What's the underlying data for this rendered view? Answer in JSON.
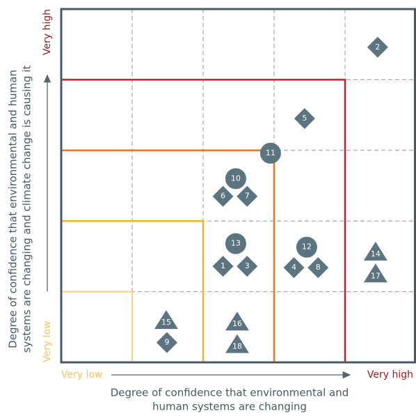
{
  "chart_data": {
    "type": "scatter",
    "x_label": [
      "Degree of confidence that environmental and",
      "human systems are changing"
    ],
    "y_label": [
      "Degree of confidence that environmental and human",
      "systems are changing and climate change is causing it"
    ],
    "xlim": [
      0,
      5
    ],
    "ylim": [
      0,
      5
    ],
    "xticks": [
      {
        "value": 0,
        "label": "Very low"
      },
      {
        "value": 5,
        "label": "Very high"
      }
    ],
    "yticks": [
      {
        "value": 0,
        "label": "Very low"
      },
      {
        "value": 5,
        "label": "Very high"
      }
    ],
    "tick_colors": [
      "#f6c460",
      "#9b1b1b"
    ],
    "grid_values": [
      1,
      2,
      3,
      4
    ],
    "zones": [
      {
        "extent": 1,
        "color": "#f9d690"
      },
      {
        "extent": 2,
        "color": "#f2b62a"
      },
      {
        "extent": 3,
        "color": "#e8781e"
      },
      {
        "extent": 4,
        "color": "#c0262b"
      }
    ],
    "marker_color": "#5b7480",
    "points": [
      {
        "label": "2",
        "shape": "diamond",
        "x": 4.46,
        "y": 4.46
      },
      {
        "label": "5",
        "shape": "diamond",
        "x": 3.43,
        "y": 3.45
      },
      {
        "label": "11",
        "shape": "circle",
        "x": 2.95,
        "y": 2.96
      },
      {
        "label": "10",
        "shape": "circle",
        "x": 2.46,
        "y": 2.6
      },
      {
        "label": "6",
        "shape": "diamond",
        "x": 2.28,
        "y": 2.35
      },
      {
        "label": "7",
        "shape": "diamond",
        "x": 2.62,
        "y": 2.35
      },
      {
        "label": "13",
        "shape": "circle",
        "x": 2.46,
        "y": 1.68
      },
      {
        "label": "1",
        "shape": "diamond",
        "x": 2.28,
        "y": 1.36
      },
      {
        "label": "3",
        "shape": "diamond",
        "x": 2.62,
        "y": 1.36
      },
      {
        "label": "12",
        "shape": "circle",
        "x": 3.46,
        "y": 1.63
      },
      {
        "label": "4",
        "shape": "diamond",
        "x": 3.28,
        "y": 1.34
      },
      {
        "label": "8",
        "shape": "diamond",
        "x": 3.62,
        "y": 1.34
      },
      {
        "label": "14",
        "shape": "triangle",
        "x": 4.43,
        "y": 1.56
      },
      {
        "label": "17",
        "shape": "triangle",
        "x": 4.43,
        "y": 1.25
      },
      {
        "label": "15",
        "shape": "triangle",
        "x": 1.48,
        "y": 0.59
      },
      {
        "label": "9",
        "shape": "diamond",
        "x": 1.49,
        "y": 0.28
      },
      {
        "label": "16",
        "shape": "triangle",
        "x": 2.48,
        "y": 0.57
      },
      {
        "label": "18",
        "shape": "triangle",
        "x": 2.48,
        "y": 0.25
      }
    ]
  }
}
